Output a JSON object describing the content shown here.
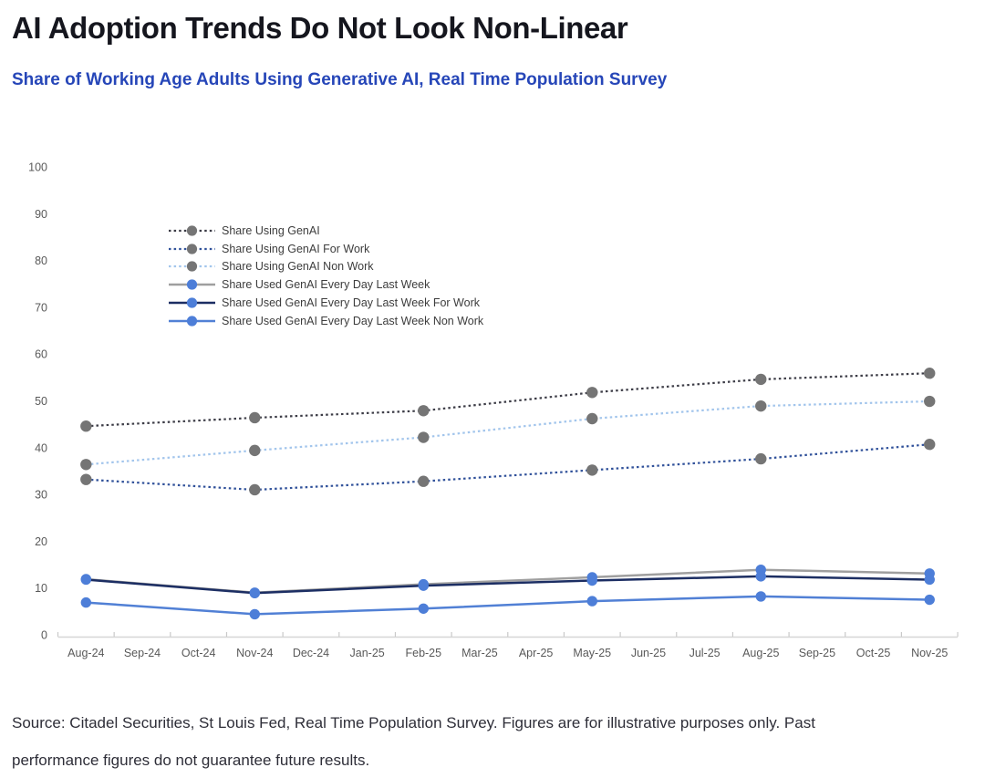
{
  "header": {
    "title": "AI Adoption Trends Do Not Look Non-Linear",
    "subtitle": "Share of Working Age Adults Using Generative AI, Real Time Population Survey"
  },
  "footer": {
    "lines": [
      "Source: Citadel Securities, St Louis Fed, Real Time Population Survey. Figures are for illustrative purposes only. Past",
      "performance figures do not guarantee future results."
    ]
  },
  "colors": {
    "title_text": "#15161e",
    "subtitle_text": "#2646b8",
    "axis_text": "#595959",
    "axis_line": "#d6d6d6",
    "tick_mark": "#c9c9c9",
    "legend_text": "#3d3d3d",
    "source_text": "#2e2e38",
    "dotted_marker_gray": "#757575",
    "solid_marker_blue": "#4d7ed8"
  },
  "chart_data": {
    "type": "line",
    "title": "AI Adoption Trends Do Not Look Non-Linear",
    "subtitle": "Share of Working Age Adults Using Generative AI, Real Time Population Survey",
    "xlabel": "",
    "ylabel": "",
    "ylim": [
      0,
      100
    ],
    "y_axis": {
      "min": 0,
      "max": 100,
      "step": 10
    },
    "grid": false,
    "legend_position": "inside-upper-left",
    "categories": [
      "Aug-24",
      "Sep-24",
      "Oct-24",
      "Nov-24",
      "Dec-24",
      "Jan-25",
      "Feb-25",
      "Mar-25",
      "Apr-25",
      "May-25",
      "Jun-25",
      "Jul-25",
      "Aug-25",
      "Sep-25",
      "Oct-25",
      "Nov-25"
    ],
    "survey_months": [
      "Aug-24",
      "Nov-24",
      "Feb-25",
      "May-25",
      "Aug-25",
      "Nov-25"
    ],
    "series": [
      {
        "name": "Share Using GenAI",
        "style": "dotted",
        "line_color": "#3c3c46",
        "marker_color": "#757575",
        "x": [
          "Aug-24",
          "Nov-24",
          "Feb-25",
          "May-25",
          "Aug-25",
          "Nov-25"
        ],
        "values": [
          44.6,
          46.4,
          47.9,
          51.8,
          54.6,
          55.9
        ]
      },
      {
        "name": "Share Using GenAI For Work",
        "style": "dotted",
        "line_color": "#30519a",
        "marker_color": "#757575",
        "x": [
          "Aug-24",
          "Nov-24",
          "Feb-25",
          "May-25",
          "Aug-25",
          "Nov-25"
        ],
        "values": [
          33.2,
          31.0,
          32.8,
          35.2,
          37.6,
          40.7
        ]
      },
      {
        "name": "Share Using GenAI Non Work",
        "style": "dotted",
        "line_color": "#a2c5ec",
        "marker_color": "#757575",
        "x": [
          "Aug-24",
          "Nov-24",
          "Feb-25",
          "May-25",
          "Aug-25",
          "Nov-25"
        ],
        "values": [
          36.4,
          39.4,
          42.2,
          46.2,
          48.9,
          49.9
        ]
      },
      {
        "name": "Share Used GenAI Every Day Last Week",
        "style": "solid",
        "line_color": "#9f9f9f",
        "marker_color": "#4d7ed8",
        "x": [
          "Aug-24",
          "Nov-24",
          "Feb-25",
          "May-25",
          "Aug-25",
          "Nov-25"
        ],
        "values": [
          11.9,
          9.0,
          10.8,
          12.3,
          13.9,
          13.1
        ]
      },
      {
        "name": "Share Used GenAI Every Day Last Week For Work",
        "style": "solid",
        "line_color": "#1c2e63",
        "marker_color": "#4d7ed8",
        "x": [
          "Aug-24",
          "Nov-24",
          "Feb-25",
          "May-25",
          "Aug-25",
          "Nov-25"
        ],
        "values": [
          11.8,
          8.9,
          10.5,
          11.6,
          12.5,
          11.8
        ]
      },
      {
        "name": "Share Used GenAI Every Day Last Week Non Work",
        "style": "solid",
        "line_color": "#5180d5",
        "marker_color": "#4d7ed8",
        "x": [
          "Aug-24",
          "Nov-24",
          "Feb-25",
          "May-25",
          "Aug-25",
          "Nov-25"
        ],
        "values": [
          6.9,
          4.4,
          5.6,
          7.2,
          8.2,
          7.5
        ]
      }
    ]
  }
}
